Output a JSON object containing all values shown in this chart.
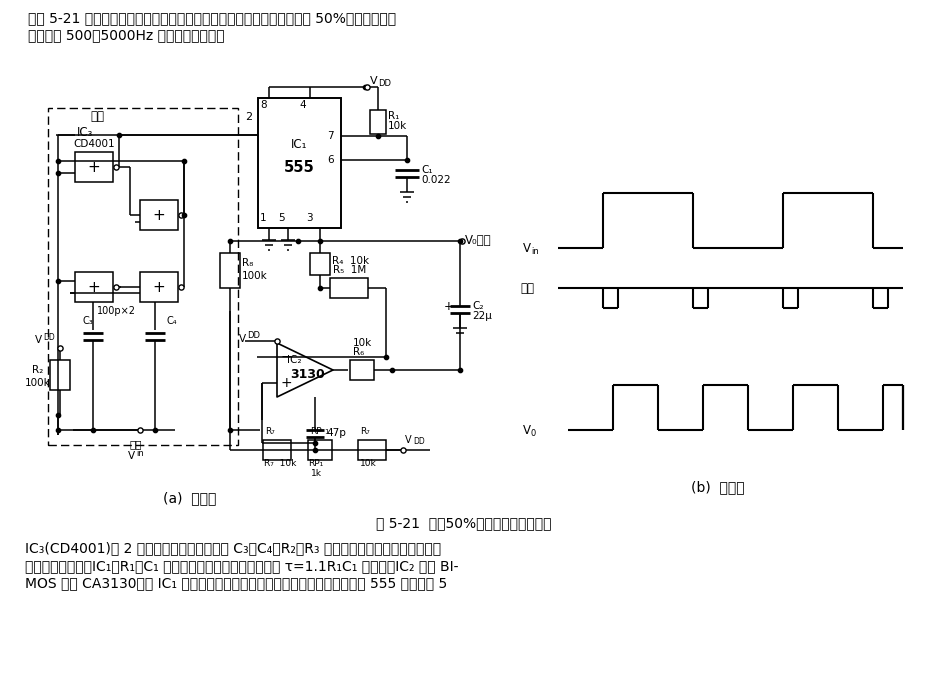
{
  "top1": "如图 5-21 所示，该电路由微分触发电路、可控振荡电路等组成。可产生 50%占空比的、工",
  "top2": "作频率为 500～5000Hz 的二倍频脉冲波。",
  "caption": "图 5-21  具有50%占空比的倍频器电路",
  "bot1": "IC₃(CD4001)为 2 输入端四或非门电路，与 C₃、C₄、R₂、R₃ 等组成微分脉冲边缘检测电路，",
  "bot2": "产生触发负脉冲。IC₁、R₁、C₁ 组成单稳触发电路，输出宽度为 τ=1.1R₁C₁ 的脉冲。IC₂ 采用 BI-",
  "bot3": "MOS 运放 CA3130，将 IC₁ 输出的脉冲波经低通滤波后的直流电平放大，控制 555 的控制端 5",
  "label_a": "(a)  电路图",
  "label_b": "(b)  波形图"
}
